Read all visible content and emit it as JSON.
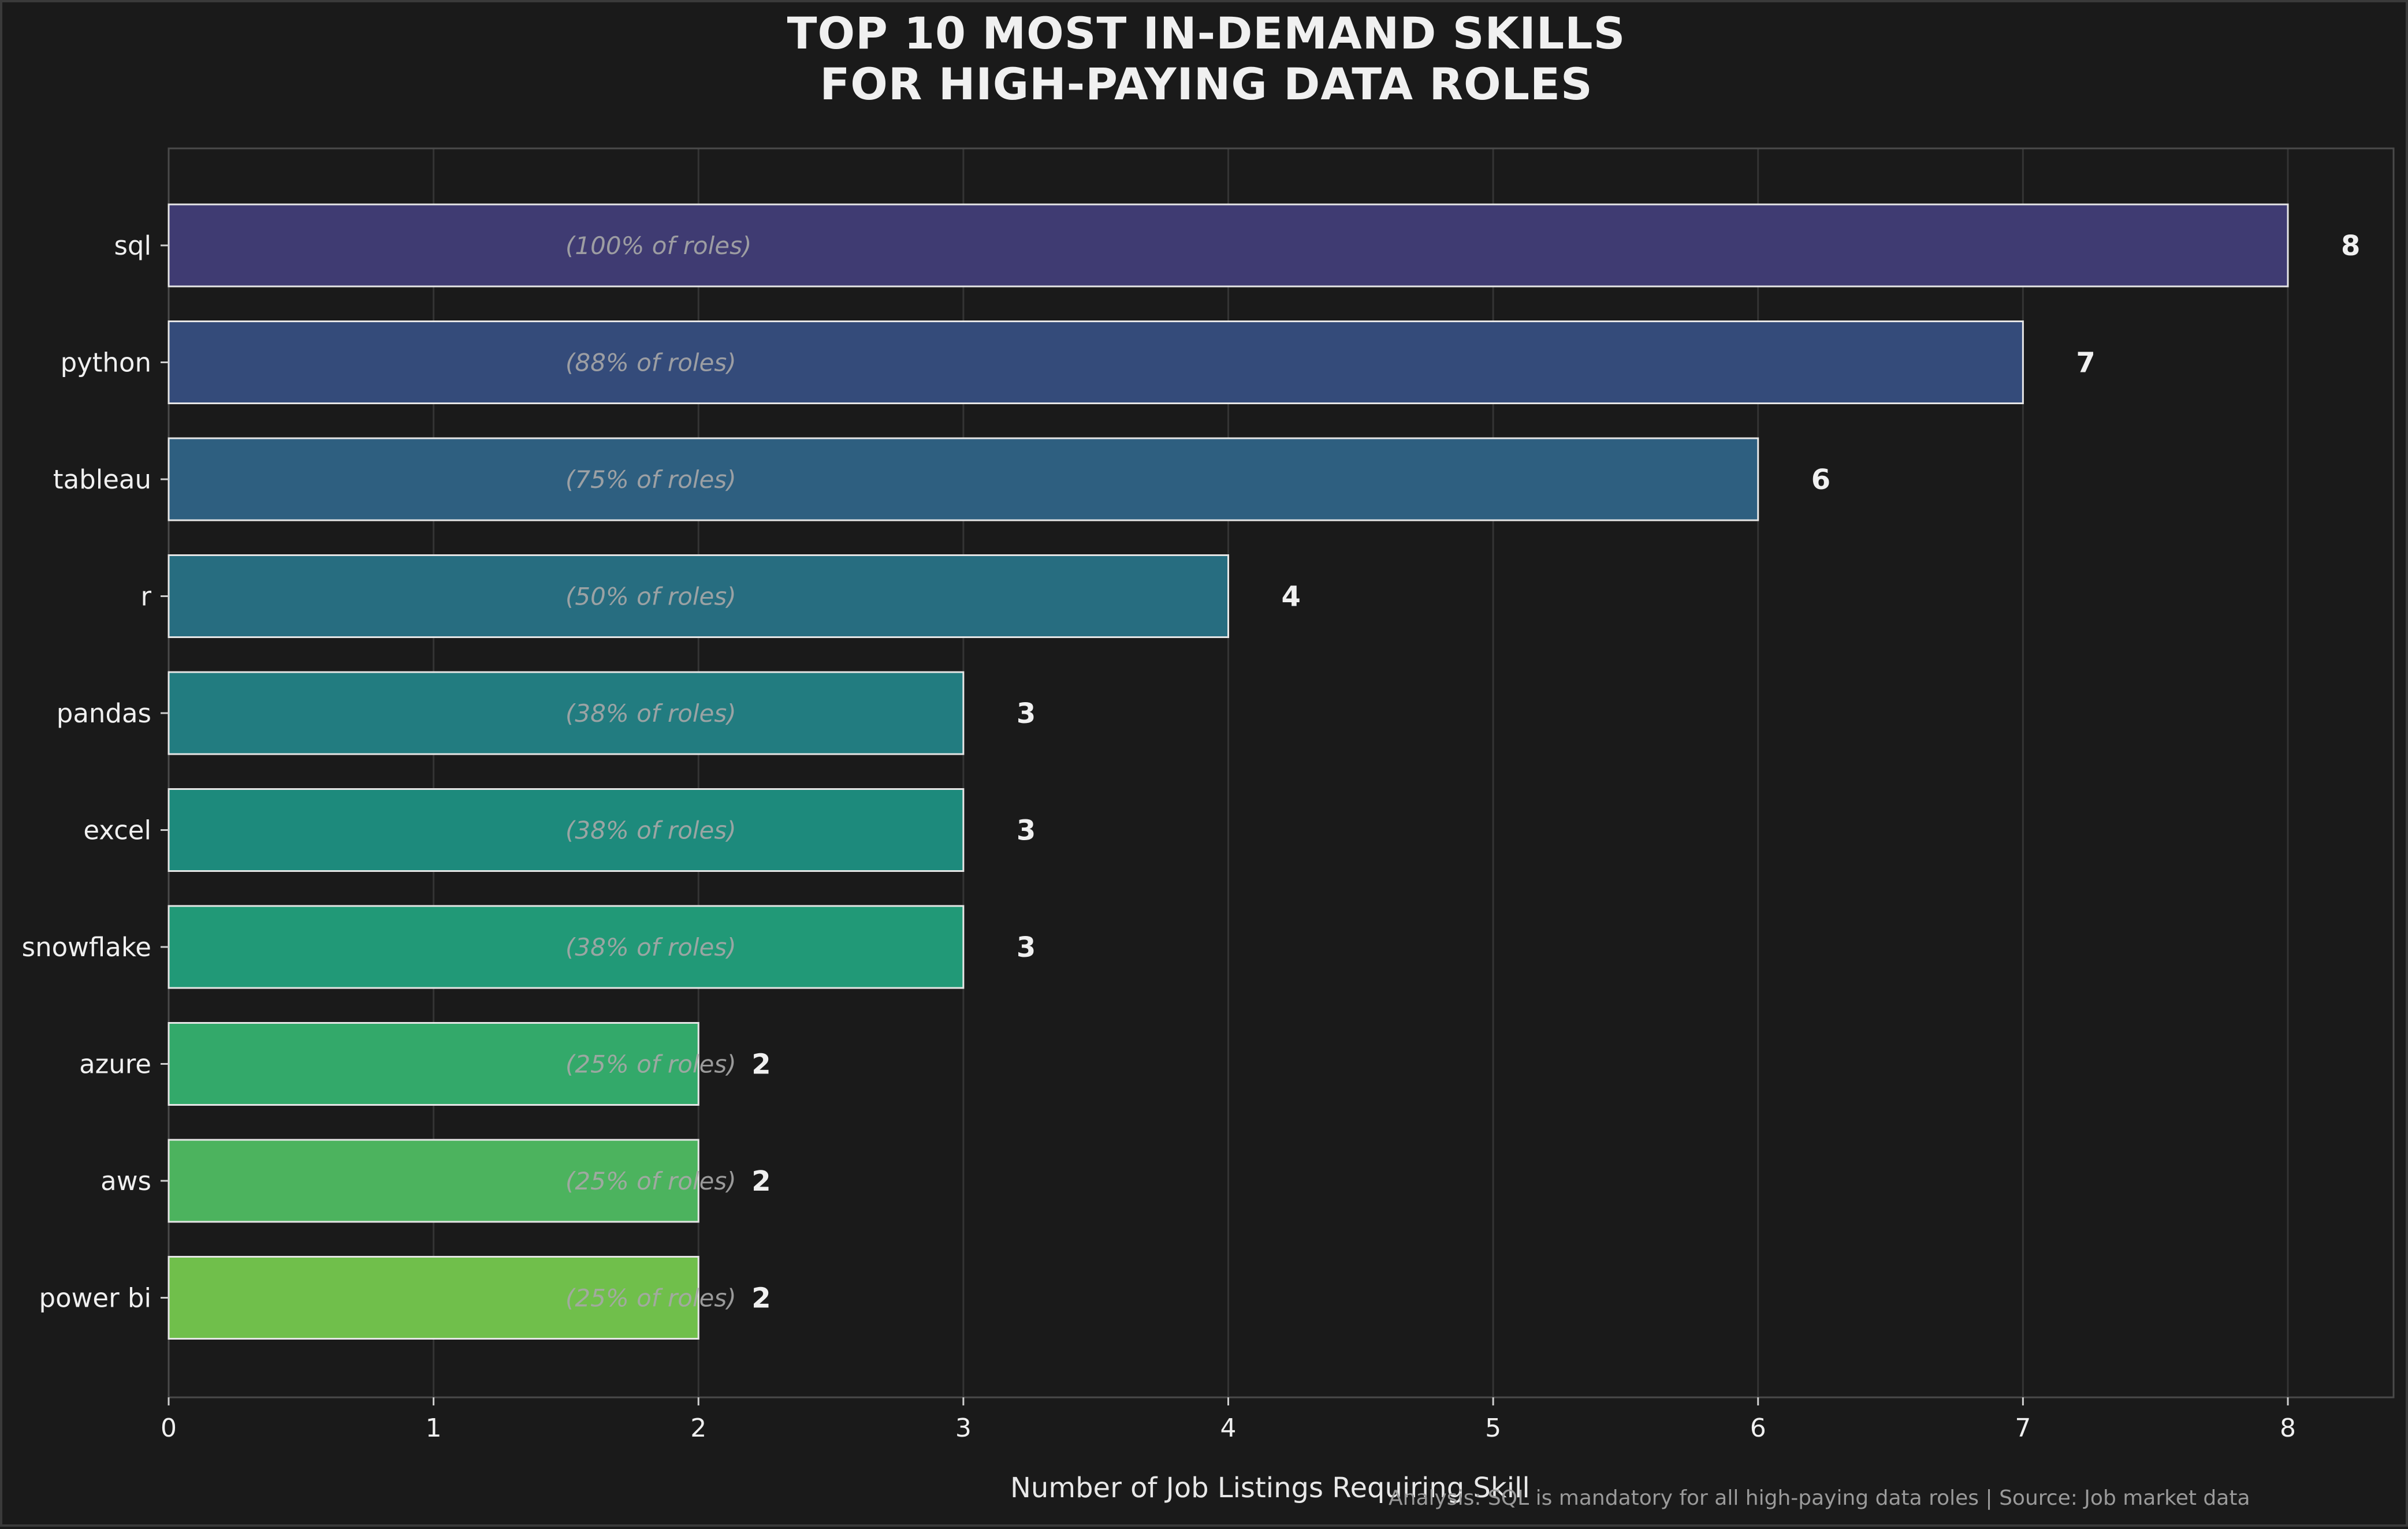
{
  "chart_data": {
    "type": "bar",
    "orientation": "horizontal",
    "title": [
      "TOP 10 MOST IN-DEMAND SKILLS",
      "FOR HIGH-PAYING DATA ROLES"
    ],
    "xlabel": "Number of Job Listings Requiring Skill",
    "ylabel": "",
    "xlim": [
      0,
      8.4
    ],
    "xticks": [
      0,
      1,
      2,
      3,
      4,
      5,
      6,
      7,
      8
    ],
    "grid": true,
    "categories": [
      "sql",
      "python",
      "tableau",
      "r",
      "pandas",
      "excel",
      "snowflake",
      "azure",
      "aws",
      "power bi"
    ],
    "values": [
      8,
      7,
      6,
      4,
      3,
      3,
      3,
      2,
      2,
      2
    ],
    "value_labels": [
      "8",
      "7",
      "6",
      "4",
      "3",
      "3",
      "3",
      "2",
      "2",
      "2"
    ],
    "percent_labels": [
      "(100% of roles)",
      "(88% of roles)",
      "(75% of roles)",
      "(50% of roles)",
      "(38% of roles)",
      "(38% of roles)",
      "(38% of roles)",
      "(25% of roles)",
      "(25% of roles)",
      "(25% of roles)"
    ],
    "bar_colors": [
      "#3f3b72",
      "#344b7a",
      "#2e5f80",
      "#276d80",
      "#227c80",
      "#1d8a7c",
      "#219977",
      "#33a96a",
      "#4cb35e",
      "#70bf4b"
    ],
    "footnote": "Analysis: SQL is mandatory for all high-paying data roles | Source: Job market data"
  },
  "colors": {
    "background": "#1a1a1a",
    "axes_border": "#4a4a4a",
    "grid": "#343434",
    "text": "#f0f0f0",
    "percent_text": "#a8a8a8",
    "bar_edge": "#e6e6e6"
  }
}
